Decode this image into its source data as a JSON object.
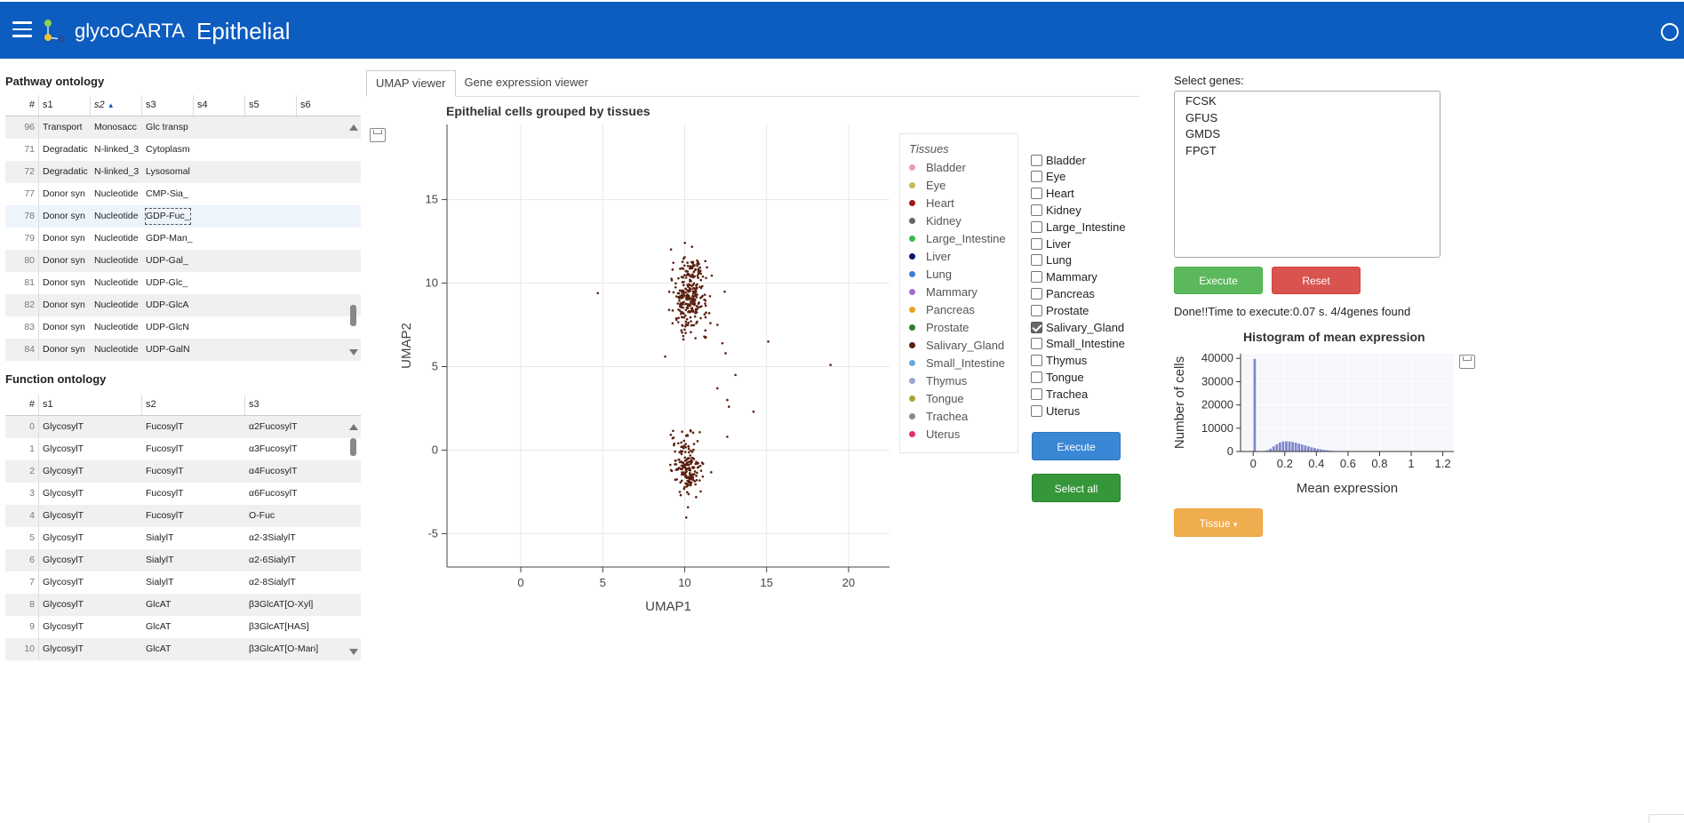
{
  "header": {
    "brand": "glycoCARTA",
    "page_title": "Epithelial"
  },
  "pathway": {
    "title": "Pathway ontology",
    "columns": [
      "#",
      "s1",
      "s2",
      "s3",
      "s4",
      "s5",
      "s6"
    ],
    "sorted_column": "s2",
    "rows": [
      [
        "96",
        "Transport",
        "Monosacc",
        "Glc transp"
      ],
      [
        "71",
        "Degradatic",
        "N-linked_3",
        "Cytoplasm"
      ],
      [
        "72",
        "Degradatic",
        "N-linked_3",
        "Lysosomal"
      ],
      [
        "77",
        "Donor syn",
        "Nucleotide",
        "CMP-Sia_"
      ],
      [
        "78",
        "Donor syn",
        "Nucleotide",
        "GDP-Fuc_"
      ],
      [
        "79",
        "Donor syn",
        "Nucleotide",
        "GDP-Man_"
      ],
      [
        "80",
        "Donor syn",
        "Nucleotide",
        "UDP-Gal_"
      ],
      [
        "81",
        "Donor syn",
        "Nucleotide",
        "UDP-Glc_"
      ],
      [
        "82",
        "Donor syn",
        "Nucleotide",
        "UDP-GlcA"
      ],
      [
        "83",
        "Donor syn",
        "Nucleotide",
        "UDP-GlcN"
      ],
      [
        "84",
        "Donor syn",
        "Nucleotide",
        "UDP-GalN"
      ]
    ]
  },
  "function": {
    "title": "Function ontology",
    "columns": [
      "#",
      "s1",
      "s2",
      "s3"
    ],
    "rows": [
      [
        "0",
        "GlycosylT",
        "FucosylT",
        "α2FucosylT"
      ],
      [
        "1",
        "GlycosylT",
        "FucosylT",
        "α3FucosylT"
      ],
      [
        "2",
        "GlycosylT",
        "FucosylT",
        "α4FucosylT"
      ],
      [
        "3",
        "GlycosylT",
        "FucosylT",
        "α6FucosylT"
      ],
      [
        "4",
        "GlycosylT",
        "FucosylT",
        "O-Fuc"
      ],
      [
        "5",
        "GlycosylT",
        "SialylT",
        "α2-3SialylT"
      ],
      [
        "6",
        "GlycosylT",
        "SialylT",
        "α2-6SialylT"
      ],
      [
        "7",
        "GlycosylT",
        "SialylT",
        "α2-8SialylT"
      ],
      [
        "8",
        "GlycosylT",
        "GlcAT",
        "β3GlcAT[O-Xyl]"
      ],
      [
        "9",
        "GlycosylT",
        "GlcAT",
        "β3GlcAT[HAS]"
      ],
      [
        "10",
        "GlycosylT",
        "GlcAT",
        "β3GlcAT[O-Man]"
      ]
    ]
  },
  "tabs": [
    "UMAP viewer",
    "Gene expression viewer"
  ],
  "umap": {
    "title": "Epithelial cells grouped by tissues",
    "legend_title": "Tissues",
    "point_color": "#5a1f0f"
  },
  "tissues": [
    {
      "name": "Bladder",
      "color": "#e8a0a8",
      "checked": false
    },
    {
      "name": "Eye",
      "color": "#c9bb5a",
      "checked": false
    },
    {
      "name": "Heart",
      "color": "#a01818",
      "checked": false
    },
    {
      "name": "Kidney",
      "color": "#666666",
      "checked": false
    },
    {
      "name": "Large_Intestine",
      "color": "#3cb84a",
      "checked": false
    },
    {
      "name": "Liver",
      "color": "#0a1770",
      "checked": false
    },
    {
      "name": "Lung",
      "color": "#3d7fd6",
      "checked": false
    },
    {
      "name": "Mammary",
      "color": "#a46bcf",
      "checked": false
    },
    {
      "name": "Pancreas",
      "color": "#f0a020",
      "checked": false
    },
    {
      "name": "Prostate",
      "color": "#2f7a2f",
      "checked": false
    },
    {
      "name": "Salivary_Gland",
      "color": "#5a1f0f",
      "checked": true
    },
    {
      "name": "Small_Intestine",
      "color": "#6aa9dd",
      "checked": false
    },
    {
      "name": "Thymus",
      "color": "#9aa5d8",
      "checked": false
    },
    {
      "name": "Tongue",
      "color": "#a8a432",
      "checked": false
    },
    {
      "name": "Trachea",
      "color": "#8a8a8a",
      "checked": false
    },
    {
      "name": "Uterus",
      "color": "#e0306a",
      "checked": false
    }
  ],
  "buttons": {
    "execute": "Execute",
    "select_all": "Select all",
    "execute2": "Execute",
    "reset": "Reset",
    "tissue": "Tissue"
  },
  "genes": {
    "label": "Select genes:",
    "list": [
      "FCSK",
      "GFUS",
      "GMDS",
      "FPGT"
    ]
  },
  "status_text": "Done!!Time to execute:0.07 s. 4/4genes found",
  "chart_data": [
    {
      "type": "scatter",
      "title": "Epithelial cells grouped by tissues",
      "xlabel": "UMAP1",
      "ylabel": "UMAP2",
      "xlim": [
        -4.5,
        22.5
      ],
      "ylim": [
        -7,
        19.5
      ],
      "xticks": [
        0,
        5,
        10,
        15,
        20
      ],
      "yticks": [
        -5,
        0,
        5,
        10,
        15
      ],
      "grid": true,
      "series": [
        {
          "name": "Salivary_Gland",
          "points": [
            [
              4.7,
              9.4
            ],
            [
              11.5,
              8.2
            ],
            [
              12.0,
              7.5
            ],
            [
              11.2,
              6.8
            ],
            [
              12.3,
              6.4
            ],
            [
              12.5,
              5.8
            ],
            [
              15.1,
              6.5
            ],
            [
              18.9,
              5.1
            ],
            [
              13.1,
              4.5
            ],
            [
              12.0,
              3.7
            ],
            [
              12.6,
              3.0
            ],
            [
              12.7,
              2.6
            ],
            [
              14.2,
              2.3
            ],
            [
              12.6,
              0.8
            ]
          ],
          "clusters": [
            {
              "cx": 10.3,
              "cy": 9.1,
              "sx": 0.55,
              "sy": 1.0,
              "n": 260
            },
            {
              "cx": 10.5,
              "cy": 10.9,
              "sx": 0.3,
              "sy": 0.3,
              "n": 40
            },
            {
              "cx": 10.2,
              "cy": -1.2,
              "sx": 0.45,
              "sy": 0.7,
              "n": 170
            },
            {
              "cx": 10.0,
              "cy": 0.6,
              "sx": 0.5,
              "sy": 0.4,
              "n": 20
            }
          ]
        }
      ]
    },
    {
      "type": "bar",
      "title": "Histogram of mean expression",
      "xlabel": "Mean expression",
      "ylabel": "Number of cells",
      "xlim": [
        -0.08,
        1.27
      ],
      "ylim": [
        0,
        42000
      ],
      "xticks": [
        0,
        0.2,
        0.4,
        0.6,
        0.8,
        1,
        1.2
      ],
      "xtick_labels": [
        "0",
        "0.2",
        "0.4",
        "0.6",
        "0.8",
        "1",
        "1.2"
      ],
      "yticks": [
        0,
        10000,
        20000,
        30000,
        40000
      ],
      "ytick_labels": [
        "0",
        "10000",
        "20000",
        "30000",
        "40000"
      ],
      "bin_width": 0.02,
      "bins_start": 0,
      "values": [
        39800,
        0,
        0,
        0,
        500,
        1200,
        2200,
        3100,
        3900,
        4300,
        4400,
        4300,
        4100,
        3800,
        3400,
        3000,
        2600,
        2200,
        1800,
        1500,
        1200,
        900,
        700,
        500,
        350,
        250,
        180,
        120,
        80,
        60,
        40,
        30,
        20,
        15,
        10,
        8,
        5,
        4,
        3,
        2
      ]
    }
  ]
}
